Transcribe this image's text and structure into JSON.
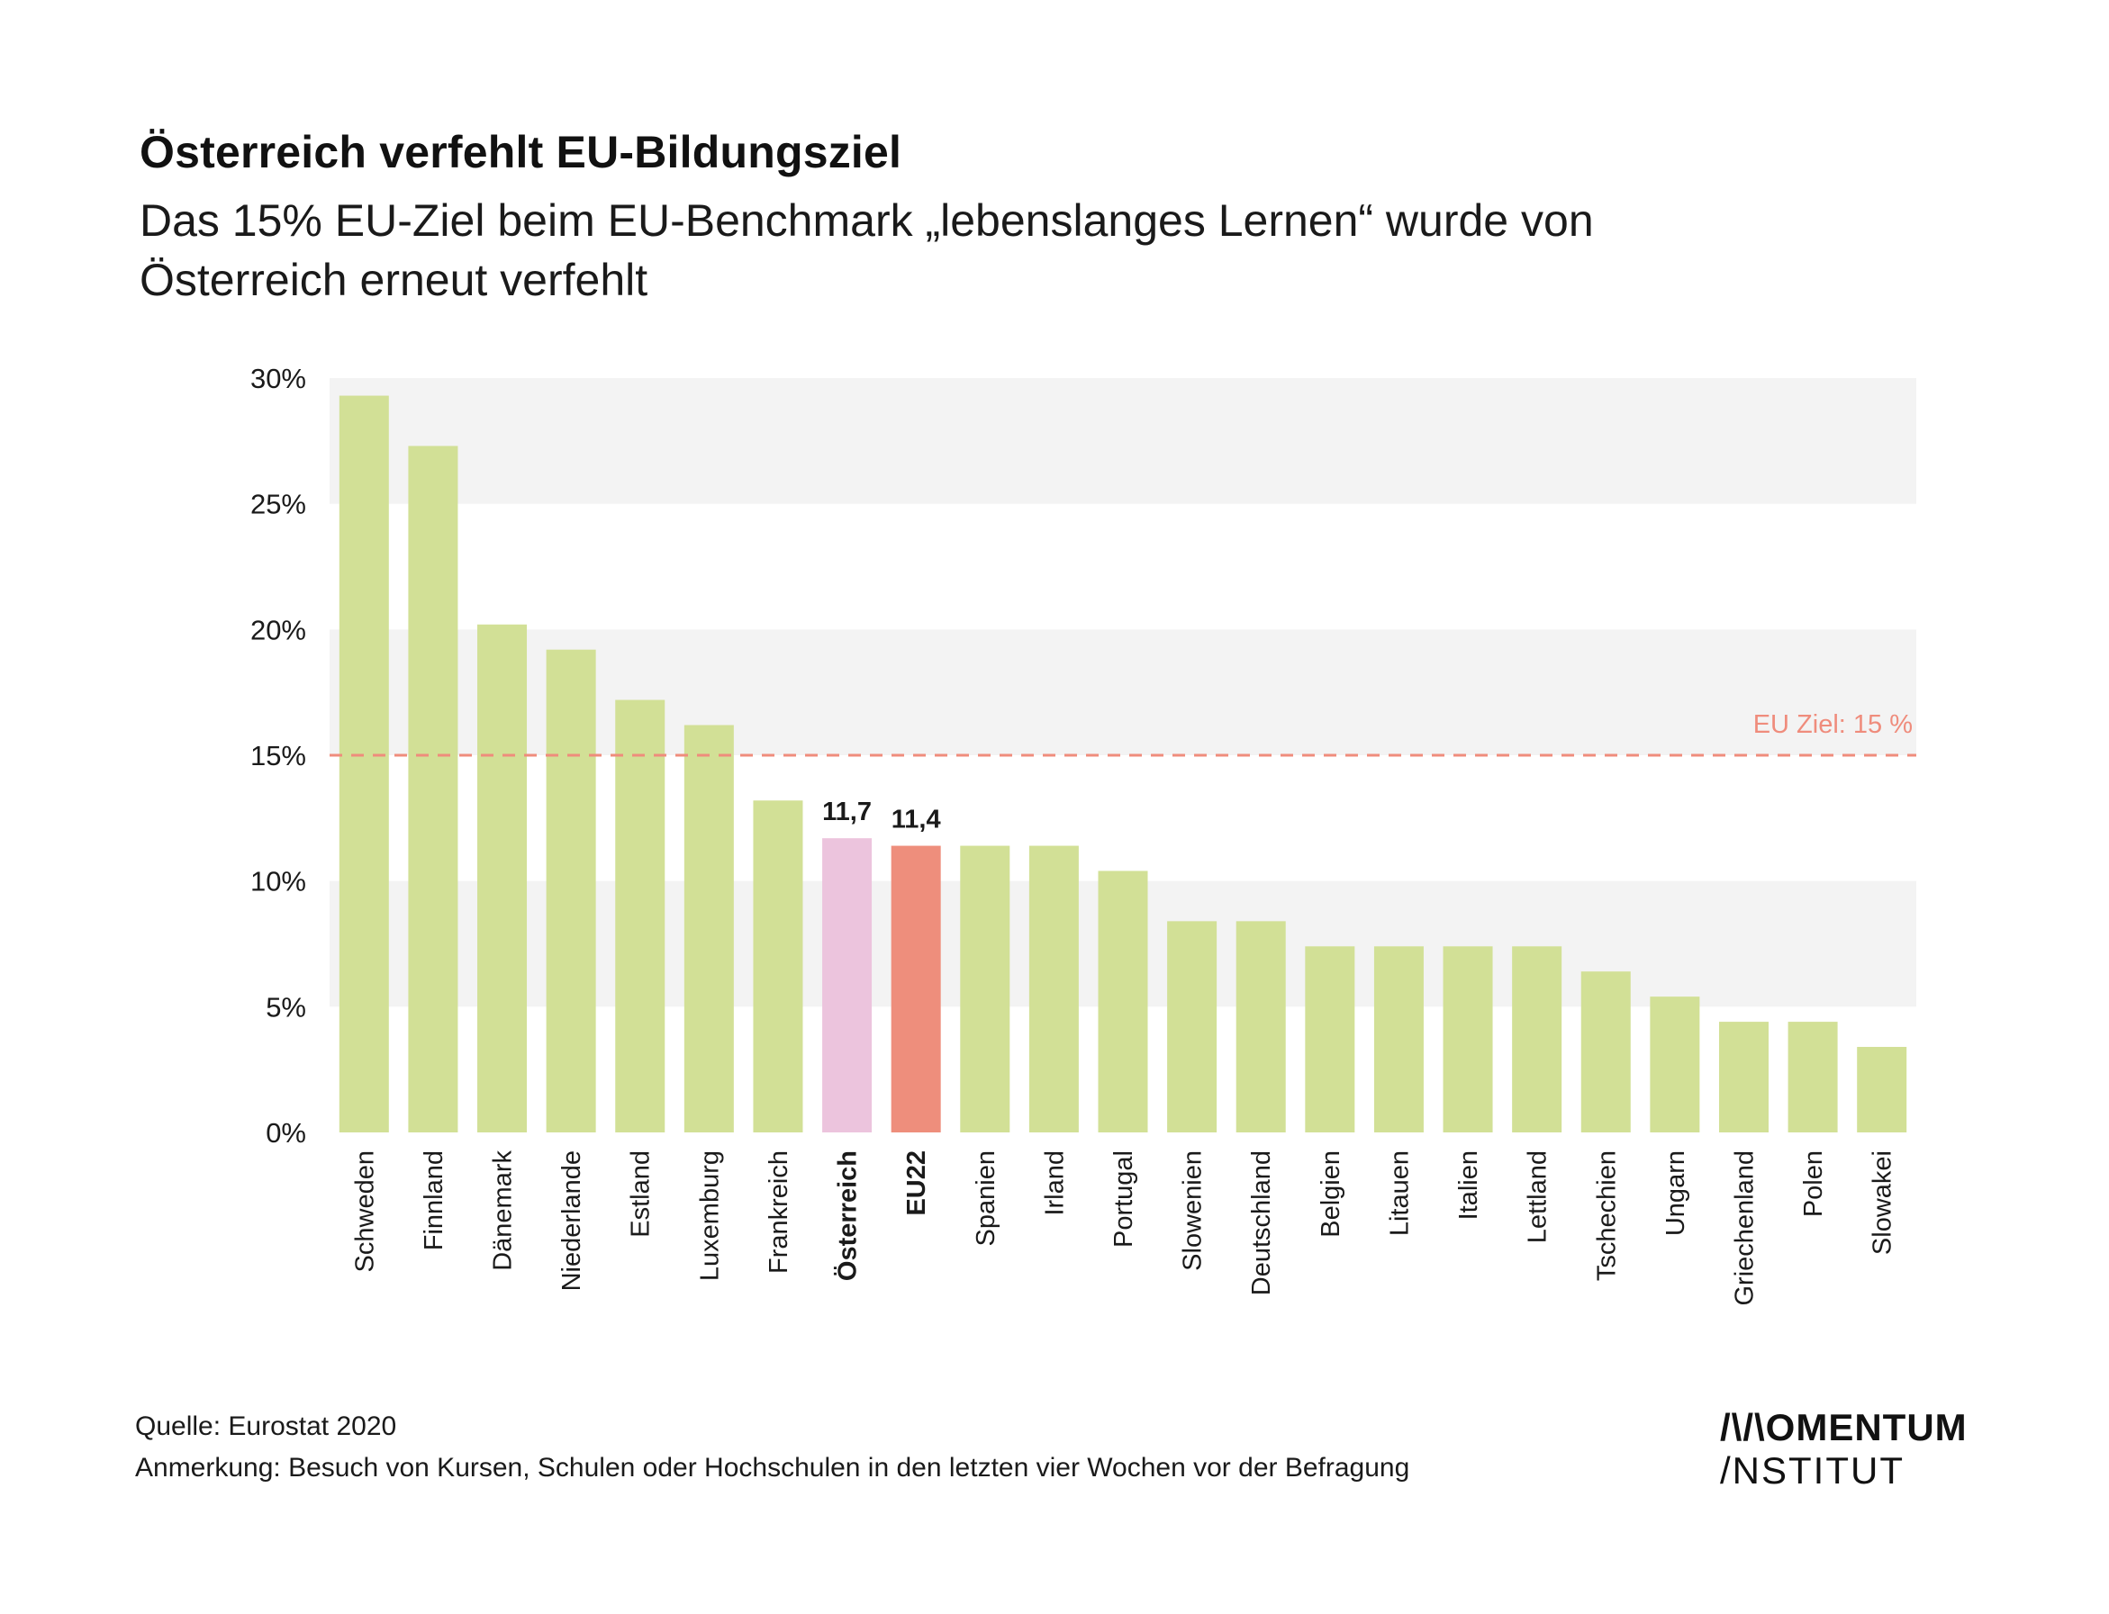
{
  "header": {
    "title": "Österreich verfehlt EU-Bildungsziel",
    "subtitle": "Das 15% EU-Ziel beim EU-Benchmark „lebenslanges Lernen“ wurde von Österreich erneut verfehlt"
  },
  "chart_data": {
    "type": "bar",
    "categories": [
      "Schweden",
      "Finnland",
      "Dänemark",
      "Niederlande",
      "Estland",
      "Luxemburg",
      "Frankreich",
      "Österreich",
      "EU22",
      "Spanien",
      "Irland",
      "Portugal",
      "Slowenien",
      "Deutschland",
      "Belgien",
      "Litauen",
      "Italien",
      "Lettland",
      "Tschechien",
      "Ungarn",
      "Griechenland",
      "Polen",
      "Slowakei"
    ],
    "values": [
      29.3,
      27.3,
      20.2,
      19.2,
      17.2,
      16.2,
      13.2,
      11.7,
      11.4,
      11.4,
      11.4,
      10.4,
      8.4,
      8.4,
      7.4,
      7.4,
      7.4,
      7.4,
      6.4,
      5.4,
      4.4,
      4.4,
      3.4
    ],
    "ylim": [
      0,
      30
    ],
    "yticks": [
      0,
      5,
      10,
      15,
      20,
      25,
      30
    ],
    "ytick_labels": [
      "0%",
      "5%",
      "10%",
      "15%",
      "20%",
      "25%",
      "30%"
    ],
    "reference_line": {
      "value": 15,
      "label": "EU Ziel: 15 %",
      "color": "#ef8c7c"
    },
    "data_labels": {
      "Österreich": "11,7",
      "EU22": "11,4"
    },
    "highlighted_categories": [
      "Österreich",
      "EU22"
    ],
    "colors": {
      "default_bar": "#d2e096",
      "Österreich": "#ecc4dd",
      "EU22": "#ee8e7c",
      "band": "#f3f3f3"
    },
    "grid": "alternating horizontal bands"
  },
  "footer": {
    "source": "Quelle: Eurostat 2020",
    "note": "Anmerkung: Besuch von Kursen, Schulen oder Hochschulen in den letzten vier Wochen vor der Befragung"
  },
  "logo": {
    "line1": "/\\/\\OMENTUM",
    "line2": "/NSTITUT"
  }
}
